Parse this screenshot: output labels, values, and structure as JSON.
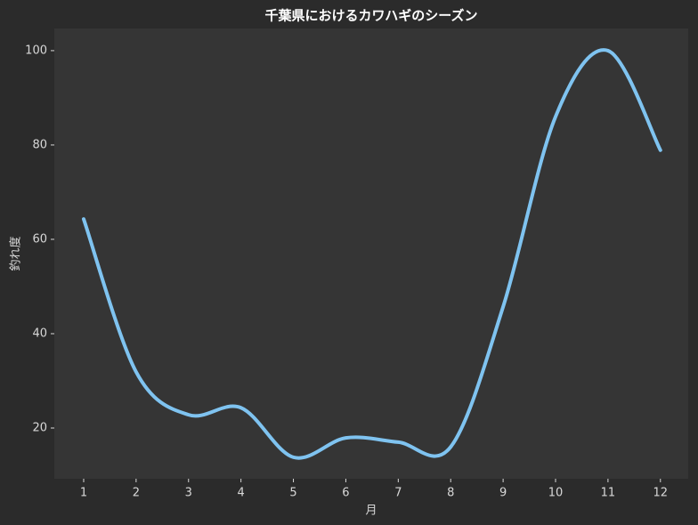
{
  "chart_data": {
    "type": "line",
    "title": "千葉県におけるカワハギのシーズン",
    "xlabel": "月",
    "ylabel": "釣れ度",
    "x": [
      1,
      2,
      3,
      4,
      5,
      6,
      7,
      8,
      9,
      10,
      11,
      12
    ],
    "series": [
      {
        "name": "釣れ度",
        "color": "#7fc3f0",
        "values": [
          64.3,
          31.9,
          22.8,
          24.3,
          13.8,
          17.9,
          17,
          16,
          45.7,
          86,
          100,
          78.9
        ]
      }
    ],
    "xlim": [
      0.44,
      12.53
    ],
    "ylim": [
      9.25,
      104.7
    ],
    "xticks": [
      1,
      2,
      3,
      4,
      5,
      6,
      7,
      8,
      9,
      10,
      11,
      12
    ],
    "yticks": [
      20,
      40,
      60,
      80,
      100
    ],
    "smooth": true
  }
}
